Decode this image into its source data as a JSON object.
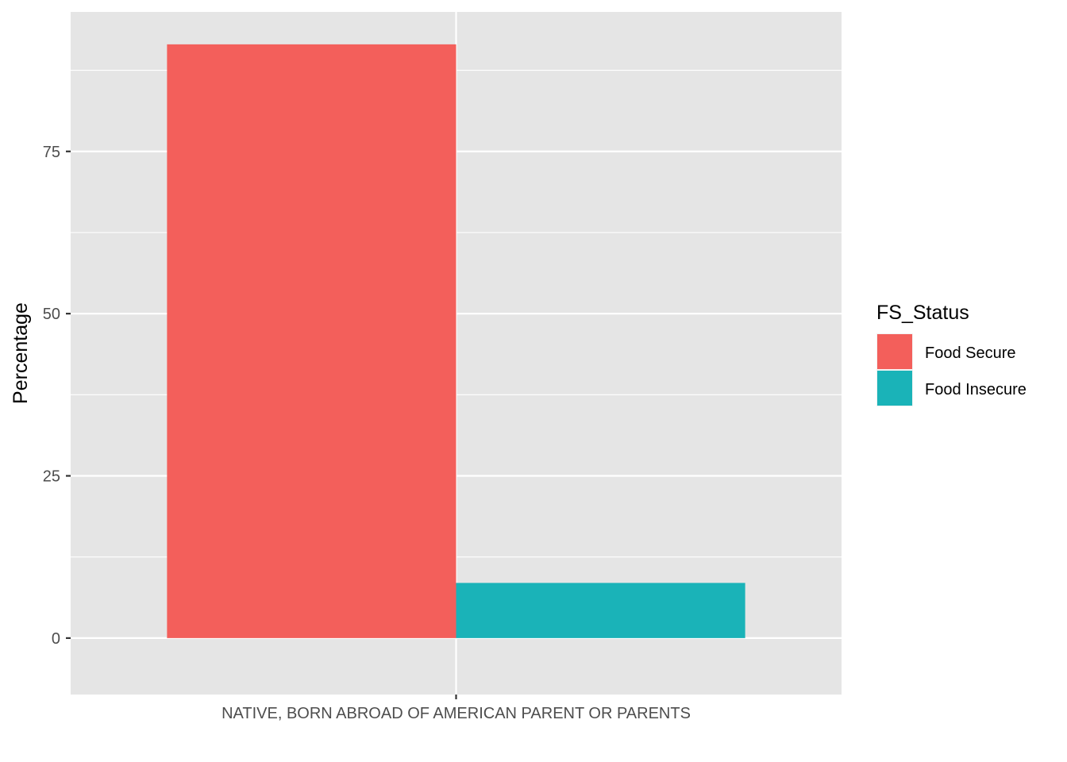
{
  "chart_data": {
    "type": "bar",
    "title": "",
    "xlabel": "",
    "ylabel": "Percentage",
    "categories": [
      "NATIVE, BORN ABROAD OF AMERICAN PARENT OR PARENTS"
    ],
    "series": [
      {
        "name": "Food Secure",
        "values": [
          91.5
        ],
        "color": "#F35F5B"
      },
      {
        "name": "Food Insecure",
        "values": [
          8.5
        ],
        "color": "#1AB3B8"
      }
    ],
    "ylim": [
      -8.7,
      96.5
    ],
    "yticks": [
      0,
      25,
      50,
      75
    ],
    "ytick_labels": [
      "0",
      "25",
      "50",
      "75"
    ],
    "legend": {
      "title": "FS_Status",
      "position": "right"
    },
    "grid": true,
    "panel_background": "#E5E5E5",
    "grid_color": "#FFFFFF"
  }
}
